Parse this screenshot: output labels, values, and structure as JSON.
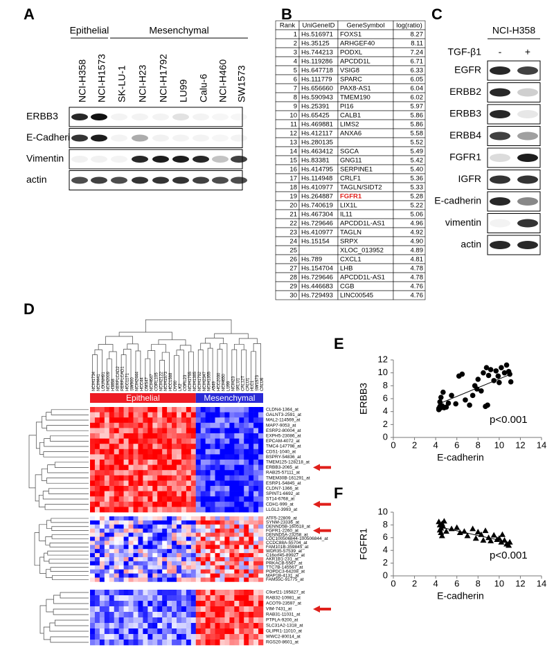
{
  "panels": {
    "A": {
      "label": "A",
      "groups": [
        {
          "name": "Epithelial",
          "lanes": [
            "NCI-H358",
            "NCI-H1573"
          ]
        },
        {
          "name": "Mesenchymal",
          "lanes": [
            "SK-LU-1",
            "NCI-H23",
            "NCI-H1792",
            "LU99",
            "Calu-6",
            "NCI-H460",
            "SW1573"
          ]
        }
      ],
      "proteins": [
        "ERBB3",
        "E-Cadherin",
        "Vimentin",
        "actin"
      ]
    },
    "B": {
      "label": "B",
      "header": [
        "Rank",
        "UniGeneID",
        "GeneSymbol",
        "log(ratio)"
      ],
      "highlight_rank": 19,
      "rows": [
        [
          1,
          "Hs.516971",
          "FOXS1",
          "8.27"
        ],
        [
          2,
          "Hs.35125",
          "ARHGEF40",
          "8.11"
        ],
        [
          3,
          "Hs.744213",
          "PODXL",
          "7.24"
        ],
        [
          4,
          "Hs.119286",
          "APCDD1L",
          "6.71"
        ],
        [
          5,
          "Hs.647718",
          "VSIG8",
          "6.33"
        ],
        [
          6,
          "Hs.111779",
          "SPARC",
          "6.05"
        ],
        [
          7,
          "Hs.656660",
          "PAX8-AS1",
          "6.04"
        ],
        [
          8,
          "Hs.590943",
          "TMEM190",
          "6.02"
        ],
        [
          9,
          "Hs.25391",
          "PI16",
          "5.97"
        ],
        [
          10,
          "Hs.65425",
          "CALB1",
          "5.86"
        ],
        [
          11,
          "Hs.469881",
          "LIMS2",
          "5.86"
        ],
        [
          12,
          "Hs.412117",
          "ANXA6",
          "5.58"
        ],
        [
          13,
          "Hs.280135",
          null,
          "5.52"
        ],
        [
          14,
          "Hs.463412",
          "SGCA",
          "5.49"
        ],
        [
          15,
          "Hs.83381",
          "GNG11",
          "5.42"
        ],
        [
          16,
          "Hs.414795",
          "SERPINE1",
          "5.40"
        ],
        [
          17,
          "Hs.114948",
          "CRLF1",
          "5.36"
        ],
        [
          18,
          "Hs.410977",
          "TAGLN/SIDT2",
          "5.33"
        ],
        [
          19,
          "Hs.264887",
          "FGFR1",
          "5.28"
        ],
        [
          20,
          "Hs.740619",
          "LIX1L",
          "5.22"
        ],
        [
          21,
          "Hs.467304",
          "IL11",
          "5.06"
        ],
        [
          22,
          "Hs.729646",
          "APCDD1L-AS1",
          "4.96"
        ],
        [
          23,
          "Hs.410977",
          "TAGLN",
          "4.92"
        ],
        [
          24,
          "Hs.15154",
          "SRPX",
          "4.90"
        ],
        [
          25,
          null,
          "XLOC_013952",
          "4.89"
        ],
        [
          26,
          "Hs.789",
          "CXCL1",
          "4.81"
        ],
        [
          27,
          "Hs.154704",
          "LHB",
          "4.78"
        ],
        [
          28,
          "Hs.729646",
          "APCDD1L-AS1",
          "4.78"
        ],
        [
          29,
          "Hs.446683",
          "CGB",
          "4.76"
        ],
        [
          30,
          "Hs.729493",
          "LINC00545",
          "4.76"
        ]
      ]
    },
    "C": {
      "label": "C",
      "cell_line": "NCI-H358",
      "treatment": "TGF-β1",
      "conditions": [
        "-",
        "+"
      ],
      "proteins": [
        "EGFR",
        "ERBB2",
        "ERBB3",
        "ERBB4",
        "FGFR1",
        "IGFR",
        "E-cadherin",
        "vimentin",
        "actin"
      ]
    },
    "D": {
      "label": "D",
      "groups": [
        "Epithelial",
        "Mesenchymal"
      ],
      "epithelial_lines": [
        "NCIH1734",
        "NCIH441",
        "LOUNH91",
        "NCIH2009",
        "H3858",
        "RERFLCAD2",
        "RERFLCAD1",
        "HCC1171",
        "SW900",
        "NCIH2444",
        "HCC44",
        "DMS47",
        "NCIH647",
        "CORL105",
        "NCIH2122",
        "NCIH1573",
        "HCC1588",
        "DV90",
        "LK2",
        "CORL23",
        "NCIH1755",
        "NCIH1385"
      ],
      "mesenchymal_lines": [
        "NCIH1792",
        "NCIH2347",
        "NCIH1355",
        "A549",
        "HCC2030",
        "NCIH650",
        "LU99",
        "NCIH23",
        "SKLU1",
        "CAL12T",
        "CALU1",
        "HLC1",
        "SW1573",
        "CALU6"
      ],
      "clusters": [
        {
          "genes": [
            "CLDN4-1364_at",
            "GALNT3-2591_at",
            "MAL2-114569_at",
            "MAP7-9053_at",
            "ESRP2-80004_at",
            "EXPH5-23086_at",
            "EPCAM-4072_at",
            "TMC4-147798_at",
            "CDS1-1040_at",
            "BSPRY-54836_at",
            "TMEM125-128218_at",
            "ERBB3-2065_at",
            "RAB25-57111_at",
            "TMEM30B-161291_at",
            "ESRP1-54845_at",
            "CLDN7-1366_at",
            "SPINT1-6692_at",
            "ST14-6768_at",
            "CDH1-999_at",
            "LLGL2-3993_at"
          ],
          "arrows": [
            11,
            18
          ]
        },
        {
          "genes": [
            "ATF5-22809_at",
            "SYNM-23336_at",
            "DENND5B-160518_at",
            "FGFR1-2260_at",
            "DENND5A-23258_at",
            "LOC100506844-100506844_at",
            "CCDC88A-55704_at",
            "FAM101B-359845_at",
            "WDR35-57539_at",
            "C16orf45-89927_at",
            "AKR1B1-231_at",
            "PRKACB-5567_at",
            "TTC7B-145567_at",
            "POPDC3-64208_at",
            "MAP1B-4131_at",
            "FAM55C-91775_at"
          ],
          "arrows": [
            3
          ]
        },
        {
          "genes": [
            "C9orf21-195827_at",
            "RAB32-10981_at",
            "ACOT9-23597_at",
            "VIM-7431_at",
            "RAB31-11031_at",
            "PTPLA-9200_at",
            "SLC31A2-1318_at",
            "GLIPR1-11010_at",
            "WWC2-80014_at",
            "RGS20-8601_at"
          ],
          "arrows": [
            3
          ]
        }
      ]
    }
  },
  "chart_data": [
    {
      "type": "scatter",
      "panel_label": "E",
      "xlabel": "E-cadherin",
      "ylabel": "ERBB3",
      "annotation": "p<0.001",
      "marker": "circle",
      "color": "#000000",
      "xlim": [
        0,
        14
      ],
      "xticks": [
        0,
        2,
        4,
        6,
        8,
        10,
        12,
        14
      ],
      "ylim": [
        0,
        12
      ],
      "yticks": [
        0,
        2,
        4,
        6,
        8,
        10,
        12
      ],
      "x": [
        4.3,
        4.4,
        4.5,
        4.6,
        4.4,
        4.5,
        4.7,
        4.3,
        4.8,
        5.0,
        5.2,
        5.5,
        5.9,
        6.2,
        6.5,
        6.8,
        7.2,
        7.5,
        7.7,
        7.9,
        8.0,
        8.3,
        8.5,
        8.8,
        8.7,
        8.9,
        9.0,
        9.2,
        9.5,
        9.7,
        9.9,
        10.2,
        10.5,
        10.7,
        10.9,
        11.0,
        11.1,
        10.0
      ],
      "values": [
        4.5,
        4.8,
        4.6,
        4.9,
        5.5,
        6.2,
        7.0,
        4.3,
        4.6,
        4.7,
        5.3,
        6.5,
        5.2,
        9.5,
        9.8,
        5.8,
        5.0,
        6.5,
        8.0,
        7.5,
        9.0,
        7.2,
        10.0,
        10.8,
        4.8,
        5.0,
        9.6,
        10.5,
        8.8,
        10.3,
        9.5,
        10.8,
        10.0,
        11.2,
        10.2,
        9.8,
        8.6,
        8.5
      ],
      "trendline": {
        "x": [
          4.3,
          11.1
        ],
        "y": [
          5.2,
          9.8
        ]
      }
    },
    {
      "type": "scatter",
      "panel_label": "F",
      "xlabel": "E-cadherin",
      "ylabel": "FGFR1",
      "annotation": "p<0.001",
      "marker": "triangle",
      "color": "#000000",
      "xlim": [
        0,
        14
      ],
      "xticks": [
        0,
        2,
        4,
        6,
        8,
        10,
        12,
        14
      ],
      "ylim": [
        0,
        10
      ],
      "yticks": [
        0,
        2,
        4,
        6,
        8,
        10
      ],
      "x": [
        4.3,
        4.4,
        4.5,
        4.6,
        4.4,
        4.5,
        4.7,
        4.8,
        4.6,
        5.0,
        5.5,
        6.0,
        6.3,
        6.7,
        7.0,
        7.5,
        7.8,
        8.0,
        8.3,
        8.5,
        8.7,
        9.0,
        9.2,
        9.5,
        9.8,
        10.0,
        10.2,
        10.5,
        10.7,
        10.9,
        11.0,
        10.3
      ],
      "values": [
        8.5,
        8.0,
        7.5,
        8.2,
        7.2,
        6.8,
        7.8,
        8.6,
        6.3,
        7.0,
        7.4,
        7.6,
        6.8,
        7.0,
        6.3,
        7.4,
        5.9,
        6.9,
        6.5,
        5.6,
        7.1,
        6.0,
        5.5,
        6.4,
        5.7,
        5.9,
        5.3,
        5.6,
        5.0,
        4.8,
        5.3,
        6.5
      ],
      "trendline": {
        "x": [
          4.3,
          11.1
        ],
        "y": [
          7.7,
          5.2
        ]
      }
    }
  ]
}
